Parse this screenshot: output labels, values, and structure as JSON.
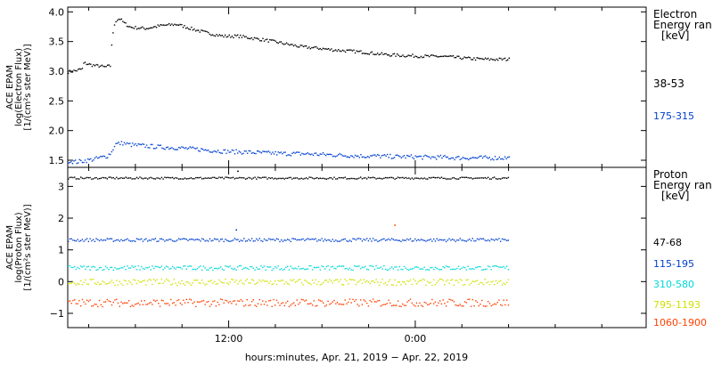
{
  "chart_data": [
    {
      "type": "scatter",
      "panel": "electron",
      "ylabel_lines": [
        "ACE EPAM",
        "log(Electron Flux)",
        "[1/(cm²s ster MeV)]"
      ],
      "ylim": [
        1.38,
        4.08
      ],
      "yticks": [
        1.5,
        2.0,
        2.5,
        3.0,
        3.5,
        4.0
      ],
      "ytick_labels": [
        "1.5",
        "2.0",
        "2.5",
        "3.0",
        "3.5",
        "4.0"
      ],
      "legend_title": [
        "Electron",
        "Energy ran",
        "[keV]"
      ],
      "series": [
        {
          "name": "38-53",
          "color": "#000000",
          "x_hours": [
            0,
            0.5,
            0.9,
            1.0,
            1.4,
            1.8,
            2.0,
            2.3,
            2.7,
            2.8,
            3.0,
            3.3,
            3.6,
            4.0,
            5.0,
            6.0,
            7.0,
            8.0,
            9.0,
            10.0,
            11.0,
            12.0,
            13.0,
            14.0,
            15.0,
            16.0,
            17.0,
            18.0,
            19.0,
            20.0,
            21.0,
            22.0,
            23.0,
            24.0,
            25.0,
            26.0,
            27.0,
            28.0
          ],
          "y": [
            3.0,
            3.02,
            3.05,
            3.15,
            3.12,
            3.1,
            3.1,
            3.08,
            3.1,
            3.5,
            3.85,
            3.9,
            3.82,
            3.75,
            3.73,
            3.78,
            3.8,
            3.72,
            3.65,
            3.6,
            3.6,
            3.56,
            3.52,
            3.47,
            3.42,
            3.4,
            3.37,
            3.35,
            3.33,
            3.3,
            3.28,
            3.27,
            3.26,
            3.26,
            3.24,
            3.22,
            3.21,
            3.21
          ]
        },
        {
          "name": "175-315",
          "color": "#0040d0",
          "x_hours": [
            0,
            0.5,
            1.0,
            1.5,
            2.0,
            2.5,
            2.8,
            3.0,
            3.5,
            4.0,
            5.0,
            6.0,
            7.0,
            8.0,
            9.0,
            10.0,
            11.0,
            12.0,
            13.0,
            14.0,
            15.0,
            16.0,
            17.0,
            18.0,
            19.0,
            20.0,
            21.0,
            22.0,
            23.0,
            24.0,
            25.0,
            26.0,
            27.0,
            28.0
          ],
          "y": [
            1.5,
            1.48,
            1.5,
            1.52,
            1.55,
            1.58,
            1.65,
            1.78,
            1.8,
            1.77,
            1.75,
            1.73,
            1.72,
            1.7,
            1.68,
            1.66,
            1.65,
            1.64,
            1.63,
            1.62,
            1.62,
            1.61,
            1.6,
            1.59,
            1.58,
            1.58,
            1.57,
            1.57,
            1.56,
            1.56,
            1.55,
            1.55,
            1.55,
            1.55
          ]
        }
      ]
    },
    {
      "type": "scatter",
      "panel": "proton",
      "ylabel_lines": [
        "ACE EPAM",
        "log(Proton Flux)",
        "[1/(cm²s ster MeV)]"
      ],
      "ylim": [
        -1.45,
        3.6
      ],
      "yticks": [
        -1,
        0,
        1,
        2,
        3
      ],
      "ytick_labels": [
        "−1",
        "0",
        "1",
        "2",
        "3"
      ],
      "legend_title": [
        "Proton",
        "Energy ran",
        "[keV]"
      ],
      "series": [
        {
          "name": "47-68",
          "color": "#000000",
          "level": 3.28,
          "spread": 0.03
        },
        {
          "name": "115-195",
          "color": "#0040d0",
          "level": 1.33,
          "spread": 0.05
        },
        {
          "name": "310-580",
          "color": "#00d8d8",
          "level": 0.45,
          "spread": 0.07
        },
        {
          "name": "795-1193",
          "color": "#d0e000",
          "level": 0.0,
          "spread": 0.1
        },
        {
          "name": "1060-1900",
          "color": "#ff4000",
          "level": -0.65,
          "spread": 0.12
        }
      ],
      "outliers": [
        {
          "x_hours": 10.8,
          "y": 1.65,
          "color": "#0040d0"
        },
        {
          "x_hours": 21.0,
          "y": 1.8,
          "color": "#ff4000"
        },
        {
          "x_hours": 10.9,
          "y": 3.5,
          "color": "#000000"
        }
      ]
    }
  ],
  "x_axis": {
    "xlim_hours": [
      0,
      37.2
    ],
    "data_end_hours": 28.4,
    "ticks": [
      {
        "h": 10.35,
        "label": "12:00"
      },
      {
        "h": 22.35,
        "label": "0:00"
      }
    ],
    "xlabel": "hours:minutes, Apr. 21, 2019 − Apr. 22, 2019"
  }
}
